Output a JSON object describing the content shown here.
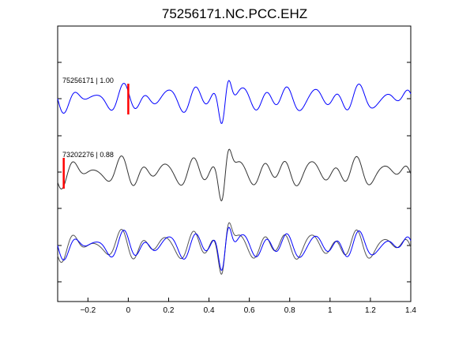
{
  "chart_data": {
    "type": "line",
    "title": "75256171.NC.PCC.EHZ",
    "xlabel": "",
    "ylabel": "",
    "xlim": [
      -0.35,
      1.4
    ],
    "x_ticks": [
      -0.2,
      0,
      0.2,
      0.4,
      0.6,
      0.8,
      1,
      1.2,
      1.4
    ],
    "x_tick_labels": [
      "−0.2",
      "0",
      "0.2",
      "0.4",
      "0.6",
      "0.8",
      "1",
      "1.2",
      "1.4"
    ],
    "grid": false,
    "traces": [
      {
        "label": "75256171 | 1.00",
        "color": "#0000ff",
        "pick_time": 0.0,
        "pick_color": "#ff0000"
      },
      {
        "label": "73202276 | 0.88",
        "color": "#333333",
        "pick_time": -0.32,
        "pick_color": "#ff0000"
      }
    ],
    "overlay": {
      "description_colors": [
        "#555555",
        "#0000ff"
      ]
    }
  }
}
